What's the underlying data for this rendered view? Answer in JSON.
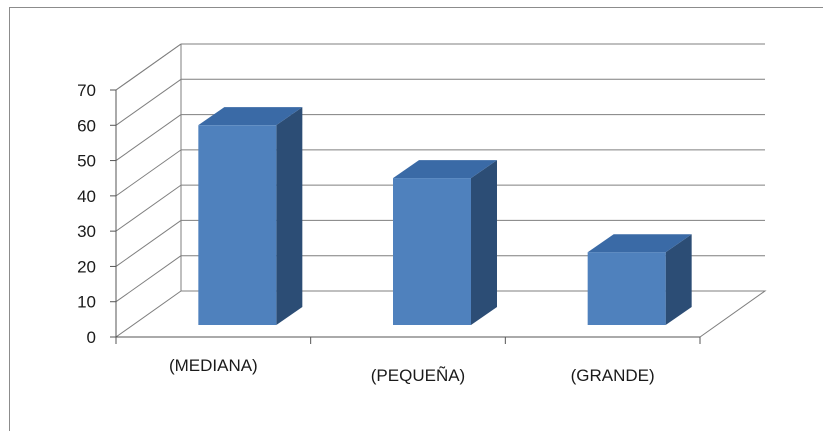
{
  "chart_data": {
    "type": "bar",
    "categories": [
      "(MEDIANA)",
      "(PEQUEÑA)",
      "(GRANDE)"
    ],
    "values": [
      64,
      49,
      28
    ],
    "ylim": [
      0,
      70
    ],
    "yticks": [
      0,
      10,
      20,
      30,
      40,
      50,
      60,
      70
    ],
    "grid": true,
    "style": "3d-column",
    "colors": {
      "front": "#4f81bd",
      "top": "#3a6aa6",
      "side": "#2c4d75",
      "grid": "#7f7f7f"
    }
  }
}
